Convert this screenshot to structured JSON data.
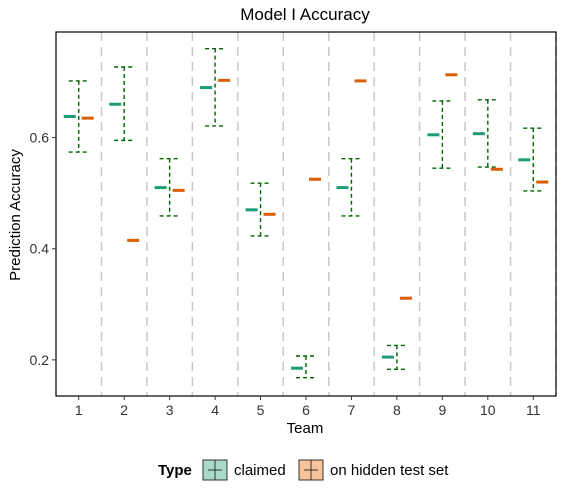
{
  "chart_data": {
    "type": "errorbar",
    "title": "Model I Accuracy",
    "xlabel": "Team",
    "ylabel": "Prediction Accuracy",
    "categories": [
      "1",
      "2",
      "3",
      "4",
      "5",
      "6",
      "7",
      "8",
      "9",
      "10",
      "11"
    ],
    "ylim": [
      0.135,
      0.79
    ],
    "yticks": [
      0.2,
      0.4,
      0.6
    ],
    "ytick_labels": [
      "0.2",
      "0.4",
      "0.6"
    ],
    "grid": false,
    "separators": true,
    "legend": {
      "title": "Type",
      "position": "bottom",
      "entries": [
        "claimed",
        "on hidden test set"
      ]
    },
    "series": [
      {
        "name": "claimed",
        "color": "#1b9e77",
        "errorbar_color": "#006400",
        "values": [
          0.638,
          0.66,
          0.51,
          0.69,
          0.47,
          0.185,
          0.51,
          0.205,
          0.605,
          0.607,
          0.56
        ],
        "lower": [
          0.574,
          0.595,
          0.459,
          0.621,
          0.423,
          0.168,
          0.459,
          0.183,
          0.545,
          0.547,
          0.504
        ],
        "upper": [
          0.702,
          0.727,
          0.562,
          0.76,
          0.518,
          0.207,
          0.562,
          0.226,
          0.666,
          0.668,
          0.617
        ]
      },
      {
        "name": "on hidden test set",
        "color": "#d95f02",
        "values": [
          0.635,
          0.415,
          0.505,
          0.703,
          0.462,
          0.525,
          0.702,
          0.311,
          0.713,
          0.543,
          0.52
        ]
      }
    ]
  }
}
